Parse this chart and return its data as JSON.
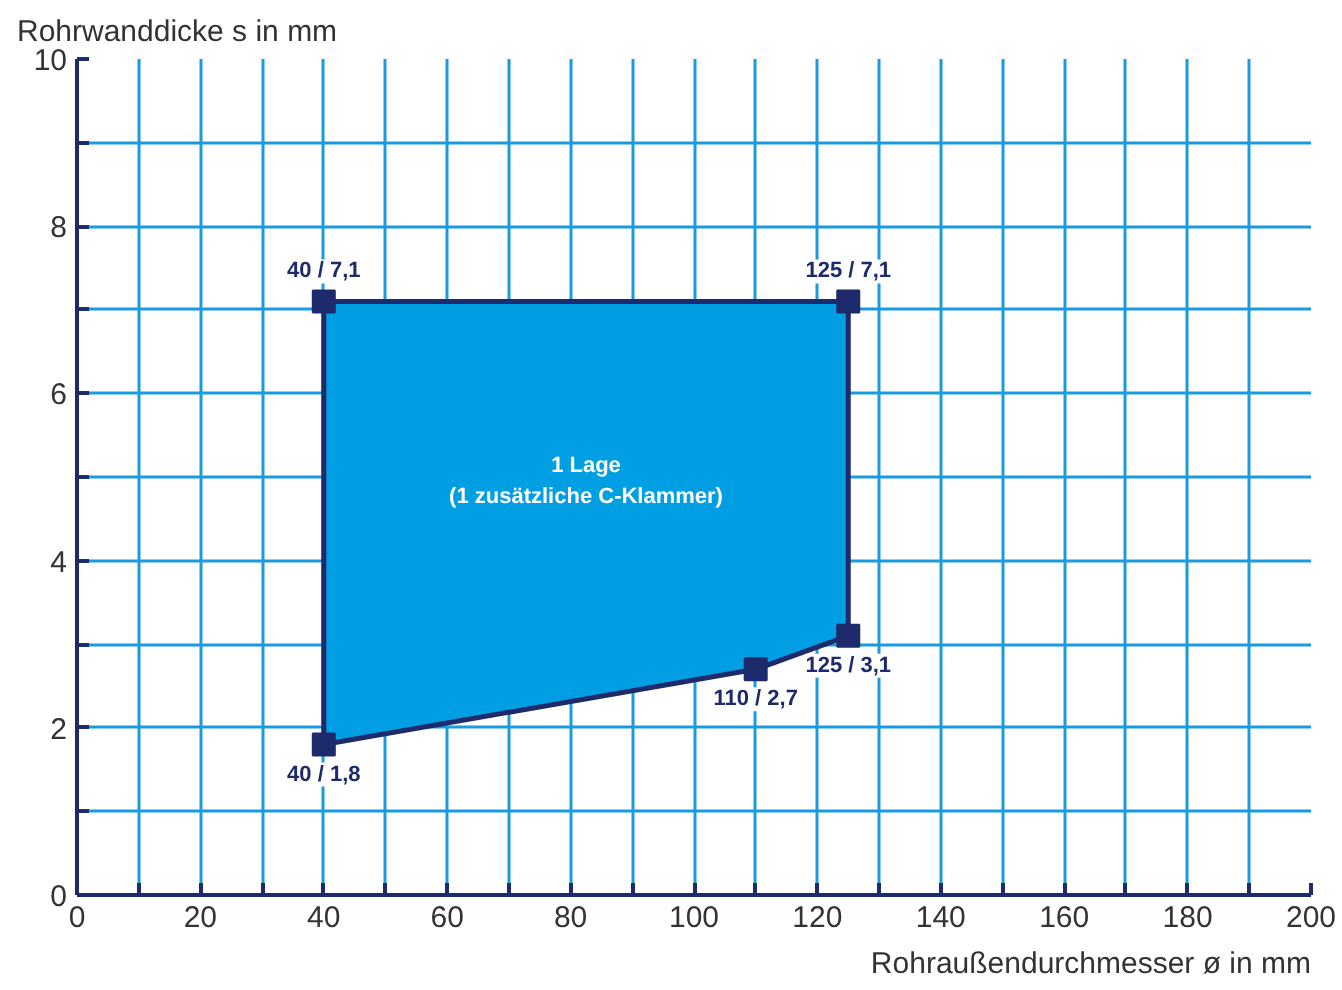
{
  "chart_data": {
    "type": "area",
    "xlabel": "Rohraußendurchmesser ø in mm",
    "ylabel": "Rohrwanddicke s in mm",
    "xlim": [
      0,
      200
    ],
    "ylim": [
      0,
      10
    ],
    "xticks": [
      0,
      {
        "value": 10,
        "label": null
      },
      20,
      {
        "value": 30,
        "label": null
      },
      40,
      {
        "value": 50,
        "label": null
      },
      60,
      {
        "value": 70,
        "label": null
      },
      80,
      {
        "value": 90,
        "label": null
      },
      100,
      {
        "value": 110,
        "label": null
      },
      120,
      {
        "value": 130,
        "label": null
      },
      140,
      {
        "value": 150,
        "label": null
      },
      160,
      {
        "value": 170,
        "label": null
      },
      180,
      {
        "value": 190,
        "label": null
      },
      200
    ],
    "yticks": [
      0,
      {
        "value": 1,
        "label": null
      },
      2,
      {
        "value": 3,
        "label": null
      },
      4,
      {
        "value": 5,
        "label": null
      },
      6,
      {
        "value": 7,
        "label": null
      },
      8,
      {
        "value": 9,
        "label": null
      },
      10
    ],
    "grid": true,
    "marker": "square",
    "series": [
      {
        "name": "1 Lage\n(1 zusätzliche C-Klammer)",
        "color": "#009fe3",
        "x": [
          40,
          40,
          125,
          125,
          110
        ],
        "values": [
          1.8,
          7.1,
          7.1,
          3.1,
          2.7
        ],
        "value_labels": [
          "40 / 1,8",
          "40 / 7,1",
          "125 / 7,1",
          "125 / 3,1",
          "110 / 2,7"
        ]
      }
    ]
  }
}
